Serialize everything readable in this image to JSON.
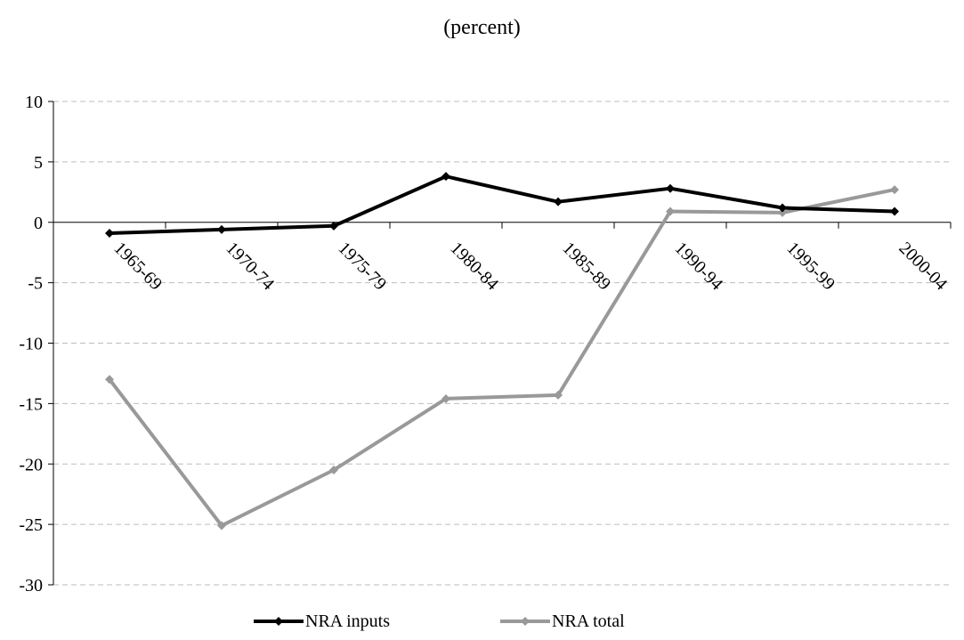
{
  "chart_data": {
    "type": "line",
    "title": "(percent)",
    "categories": [
      "1965-69",
      "1970-74",
      "1975-79",
      "1980-84",
      "1985-89",
      "1990-94",
      "1995-99",
      "2000-04"
    ],
    "ylim": [
      -30,
      10
    ],
    "yticks": [
      10,
      5,
      0,
      -5,
      -10,
      -15,
      -20,
      -25,
      -30
    ],
    "grid": true,
    "legend": "bottom",
    "series": [
      {
        "name": "NRA inputs",
        "color": "#000000",
        "values": [
          -0.9,
          -0.6,
          -0.3,
          3.8,
          1.7,
          2.8,
          1.2,
          0.9
        ]
      },
      {
        "name": "NRA total",
        "color": "#999999",
        "values": [
          -13.0,
          -25.1,
          -20.5,
          -14.6,
          -14.3,
          0.9,
          0.8,
          2.7
        ]
      }
    ]
  }
}
